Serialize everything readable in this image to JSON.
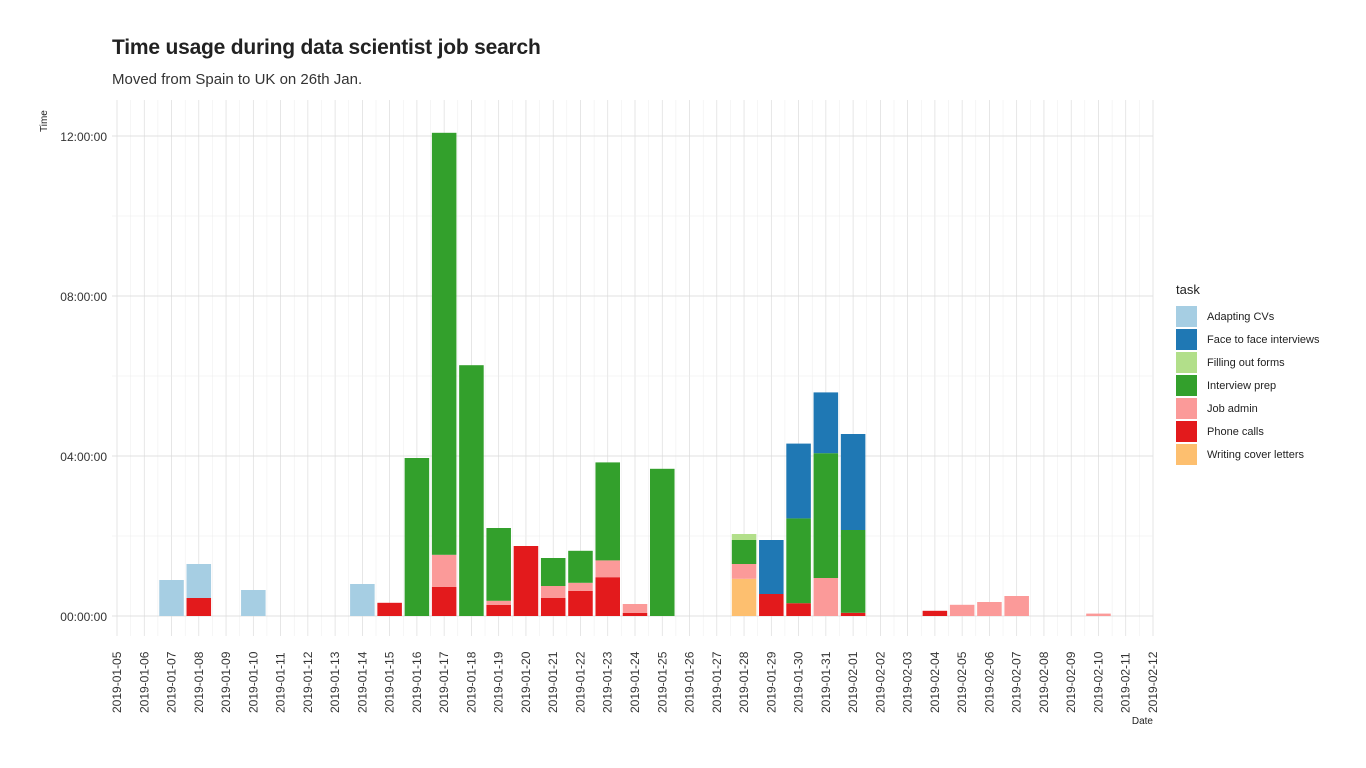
{
  "chart_data": {
    "type": "bar",
    "stacked": true,
    "title": "Time usage during data scientist job search",
    "subtitle": "Moved from Spain to UK on 26th Jan.",
    "xlabel": "Date",
    "ylabel": "Time",
    "grid": true,
    "legend_position": "right",
    "y_unit": "hours",
    "ylim": [
      0,
      12.2
    ],
    "y_ticks": [
      0,
      4,
      8,
      12
    ],
    "y_tick_labels": [
      "00:00:00",
      "04:00:00",
      "08:00:00",
      "12:00:00"
    ],
    "categories": [
      "2019-01-05",
      "2019-01-06",
      "2019-01-07",
      "2019-01-08",
      "2019-01-09",
      "2019-01-10",
      "2019-01-11",
      "2019-01-12",
      "2019-01-13",
      "2019-01-14",
      "2019-01-15",
      "2019-01-16",
      "2019-01-17",
      "2019-01-18",
      "2019-01-19",
      "2019-01-20",
      "2019-01-21",
      "2019-01-22",
      "2019-01-23",
      "2019-01-24",
      "2019-01-25",
      "2019-01-26",
      "2019-01-27",
      "2019-01-28",
      "2019-01-29",
      "2019-01-30",
      "2019-01-31",
      "2019-02-01",
      "2019-02-02",
      "2019-02-03",
      "2019-02-04",
      "2019-02-05",
      "2019-02-06",
      "2019-02-07",
      "2019-02-08",
      "2019-02-09",
      "2019-02-10",
      "2019-02-11",
      "2019-02-12"
    ],
    "series": [
      {
        "name": "Phone calls",
        "color": "#e31a1c",
        "values": [
          0,
          0,
          0,
          0.45,
          0,
          0,
          0,
          0,
          0,
          0,
          0.33,
          0,
          0.73,
          0,
          0.28,
          1.75,
          0.45,
          0.63,
          0.97,
          0.08,
          0,
          0,
          0,
          0,
          0.55,
          0.32,
          0,
          0.08,
          0,
          0,
          0.13,
          0,
          0,
          0,
          0,
          0,
          0,
          0,
          0
        ]
      },
      {
        "name": "Writing cover letters",
        "color": "#fdbf6f",
        "values": [
          0,
          0,
          0,
          0,
          0,
          0,
          0,
          0,
          0,
          0,
          0,
          0,
          0,
          0,
          0,
          0,
          0,
          0,
          0,
          0,
          0,
          0,
          0,
          0.93,
          0,
          0,
          0,
          0,
          0,
          0,
          0,
          0,
          0,
          0,
          0,
          0,
          0,
          0,
          0
        ]
      },
      {
        "name": "Job admin",
        "color": "#fb9a99",
        "values": [
          0,
          0,
          0,
          0,
          0,
          0,
          0,
          0,
          0,
          0,
          0,
          0,
          0.8,
          0,
          0.1,
          0,
          0.3,
          0.2,
          0.42,
          0.22,
          0,
          0,
          0,
          0.37,
          0,
          0,
          0.95,
          0,
          0,
          0,
          0,
          0.28,
          0.35,
          0.5,
          0,
          0,
          0.06,
          0,
          0
        ]
      },
      {
        "name": "Interview prep",
        "color": "#33a02c",
        "values": [
          0,
          0,
          0,
          0,
          0,
          0,
          0,
          0,
          0,
          0,
          0,
          3.95,
          10.55,
          6.27,
          1.82,
          0,
          0.7,
          0.8,
          2.45,
          0,
          3.68,
          0,
          0,
          0.6,
          0,
          2.12,
          3.12,
          2.07,
          0,
          0,
          0,
          0,
          0,
          0,
          0,
          0,
          0,
          0,
          0
        ]
      },
      {
        "name": "Filling out forms",
        "color": "#b2df8a",
        "values": [
          0,
          0,
          0,
          0,
          0,
          0,
          0,
          0,
          0,
          0,
          0,
          0,
          0,
          0,
          0,
          0,
          0,
          0,
          0,
          0,
          0,
          0,
          0,
          0.15,
          0,
          0,
          0,
          0,
          0,
          0,
          0,
          0,
          0,
          0,
          0,
          0,
          0,
          0,
          0
        ]
      },
      {
        "name": "Face to face interviews",
        "color": "#1f78b4",
        "values": [
          0,
          0,
          0,
          0,
          0,
          0,
          0,
          0,
          0,
          0,
          0,
          0,
          0,
          0,
          0,
          0,
          0,
          0,
          0,
          0,
          0,
          0,
          0,
          0,
          1.35,
          1.87,
          1.52,
          2.4,
          0,
          0,
          0,
          0,
          0,
          0,
          0,
          0,
          0,
          0,
          0
        ]
      },
      {
        "name": "Adapting CVs",
        "color": "#a6cee3",
        "values": [
          0,
          0,
          0.9,
          0.85,
          0,
          0.65,
          0,
          0,
          0,
          0.8,
          0,
          0,
          0,
          0,
          0,
          0,
          0,
          0,
          0,
          0,
          0,
          0,
          0,
          0,
          0,
          0,
          0,
          0,
          0,
          0,
          0,
          0,
          0,
          0,
          0,
          0,
          0,
          0,
          0
        ]
      }
    ],
    "legend_order": [
      "Adapting CVs",
      "Face to face interviews",
      "Filling out forms",
      "Interview prep",
      "Job admin",
      "Phone calls",
      "Writing cover letters"
    ]
  }
}
